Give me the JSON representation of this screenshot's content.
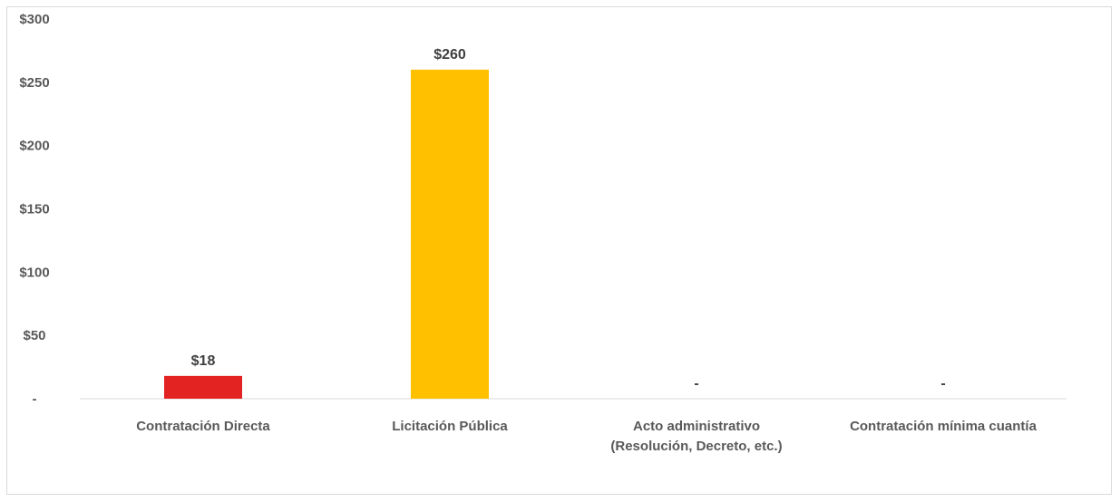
{
  "chart_data": {
    "type": "bar",
    "categories": [
      [
        "Contratación Directa"
      ],
      [
        "Licitación Pública"
      ],
      [
        "Acto administrativo",
        "(Resolución, Decreto, etc.)"
      ],
      [
        "Contratación mínima cuantía"
      ]
    ],
    "values": [
      18,
      260,
      0,
      0
    ],
    "data_labels": [
      "$18",
      "$260",
      "-",
      "-"
    ],
    "colors": [
      "#e32322",
      "#ffc000",
      "#a5a5a5",
      "#a5a5a5"
    ],
    "ylim": [
      0,
      300
    ],
    "yticks": [
      0,
      50,
      100,
      150,
      200,
      250,
      300
    ],
    "ytick_labels": [
      "-",
      "$50",
      "$100",
      "$150",
      "$200",
      "$250",
      "$300"
    ],
    "grid": false,
    "title": "",
    "xlabel": "",
    "ylabel": ""
  }
}
